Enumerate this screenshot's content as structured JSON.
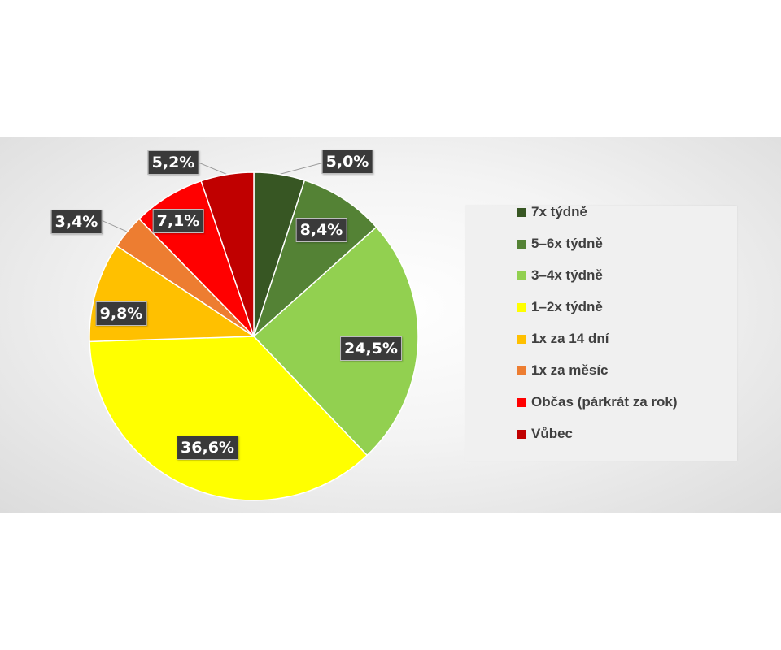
{
  "chart_data": {
    "type": "pie",
    "start_angle_deg": 0,
    "direction": "clockwise",
    "legend_position": "right",
    "slices": [
      {
        "name": "7x týdně",
        "value": 5.0,
        "label": "5,0%",
        "color": "#375623"
      },
      {
        "name": "5–6x týdně",
        "value": 8.4,
        "label": "8,4%",
        "color": "#548235"
      },
      {
        "name": "3–4x týdně",
        "value": 24.5,
        "label": "24,5%",
        "color": "#92d050"
      },
      {
        "name": "1–2x týdně",
        "value": 36.6,
        "label": "36,6%",
        "color": "#ffff00"
      },
      {
        "name": "1x za 14 dní",
        "value": 9.8,
        "label": "9,8%",
        "color": "#ffc000"
      },
      {
        "name": "1x za měsíc",
        "value": 3.4,
        "label": "3,4%",
        "color": "#ed7d31"
      },
      {
        "name": "Občas (párkrát za rok)",
        "value": 7.1,
        "label": "7,1%",
        "color": "#ff0000"
      },
      {
        "name": "Vůbec",
        "value": 5.2,
        "label": "5,2%",
        "color": "#c00000"
      }
    ]
  }
}
